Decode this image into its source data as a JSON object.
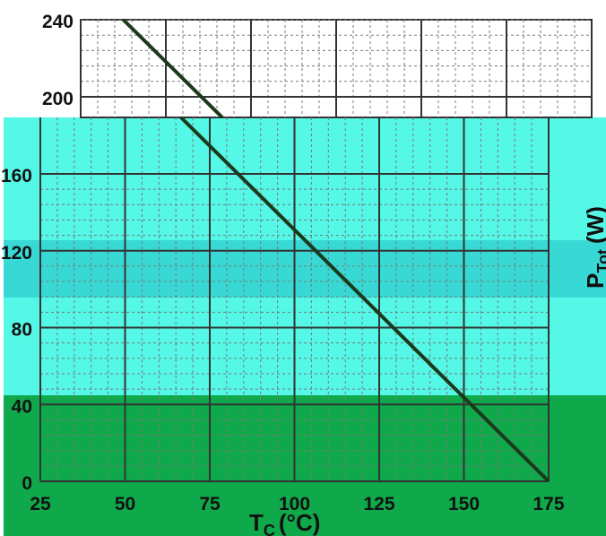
{
  "chart_data": {
    "type": "line",
    "title": "",
    "xlabel": "T",
    "xlabel_subscript": "C",
    "xlabel_unit": "(°C)",
    "ylabel": "P",
    "ylabel_subscript": "Tot",
    "ylabel_unit": "(W)",
    "xlim": [
      25,
      175
    ],
    "ylim": [
      0,
      240
    ],
    "x_ticks": [
      25,
      50,
      75,
      100,
      125,
      150,
      175
    ],
    "y_ticks": [
      0,
      40,
      80,
      120,
      160,
      200,
      240
    ],
    "x_minor_step": 5,
    "y_minor_step": 8,
    "grid": true,
    "series": [
      {
        "x": [
          37.5,
          175
        ],
        "y": [
          240,
          0
        ]
      }
    ]
  },
  "colors": {
    "line": "#1b3a1b",
    "major_grid": "#333333",
    "minor_grid": "#7a7a7a",
    "plot_bg": "#ffffff",
    "overlay_cyan": "#55f7e6",
    "overlay_teal_band": "#2fcfcf",
    "overlay_green": "#0fa84a",
    "label_text": "#111111"
  }
}
